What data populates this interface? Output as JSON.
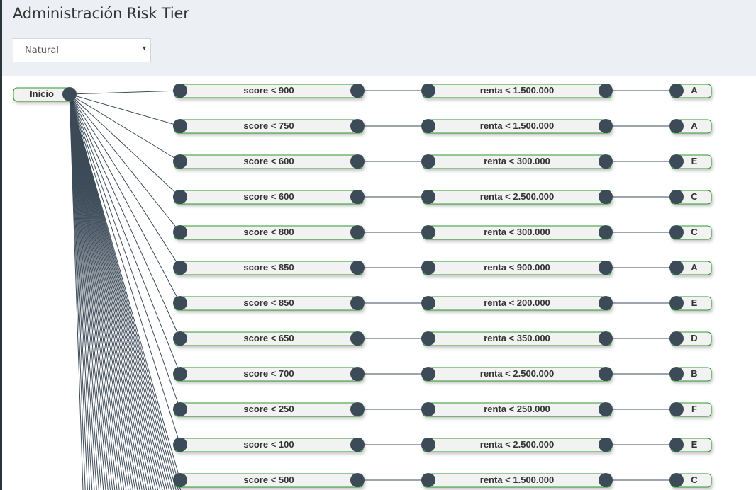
{
  "header": {
    "title": "Administración Risk Tier"
  },
  "client_type_select": {
    "value": "Natural",
    "arrow_icon": "caret-down-icon"
  },
  "tree": {
    "root_label": "Inicio",
    "branches": [
      {
        "score": "score < 900",
        "renta": "renta < 1.500.000",
        "tier": "A"
      },
      {
        "score": "score < 750",
        "renta": "renta < 1.500.000",
        "tier": "A"
      },
      {
        "score": "score < 600",
        "renta": "renta < 300.000",
        "tier": "E"
      },
      {
        "score": "score < 600",
        "renta": "renta < 2.500.000",
        "tier": "C"
      },
      {
        "score": "score < 800",
        "renta": "renta < 300.000",
        "tier": "C"
      },
      {
        "score": "score < 850",
        "renta": "renta < 900.000",
        "tier": "A"
      },
      {
        "score": "score < 850",
        "renta": "renta < 200.000",
        "tier": "E"
      },
      {
        "score": "score < 650",
        "renta": "renta < 350.000",
        "tier": "D"
      },
      {
        "score": "score < 700",
        "renta": "renta < 2.500.000",
        "tier": "B"
      },
      {
        "score": "score < 250",
        "renta": "renta < 250.000",
        "tier": "F"
      },
      {
        "score": "score < 100",
        "renta": "renta < 2.500.000",
        "tier": "E"
      },
      {
        "score": "score < 500",
        "renta": "renta < 1.500.000",
        "tier": "C"
      }
    ]
  }
}
